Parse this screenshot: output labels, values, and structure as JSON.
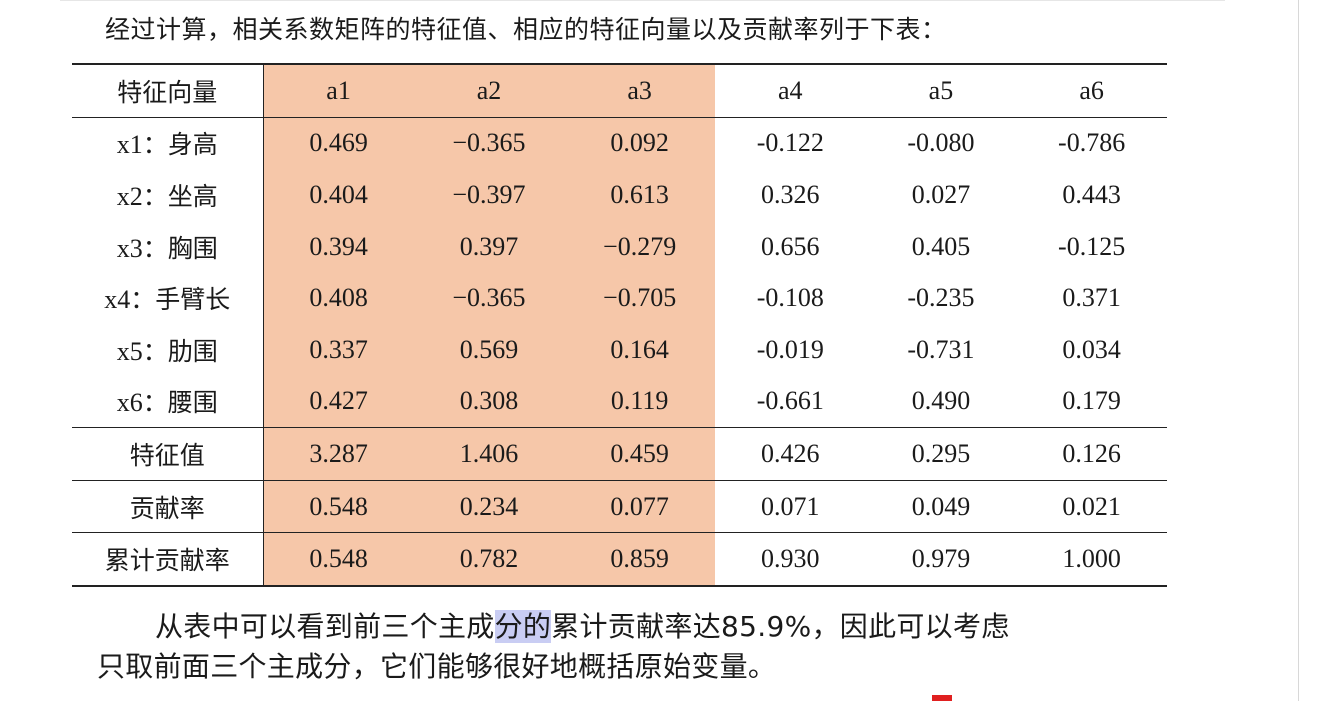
{
  "intro_text": "经过计算，相关系数矩阵的特征值、相应的特征向量以及贡献率列于下表：",
  "table": {
    "header": {
      "label": "特征向量",
      "columns": [
        "a1",
        "a2",
        "a3",
        "a4",
        "a5",
        "a6"
      ]
    },
    "vectors": [
      {
        "var": "x1",
        "sep": "：",
        "name": "身高",
        "values": [
          "0.469",
          "−0.365",
          "0.092",
          "-0.122",
          "-0.080",
          "-0.786"
        ]
      },
      {
        "var": "x2",
        "sep": "：",
        "name": "坐高",
        "values": [
          "0.404",
          "−0.397",
          "0.613",
          "0.326",
          "0.027",
          "0.443"
        ]
      },
      {
        "var": "x3",
        "sep": "：",
        "name": "胸围",
        "values": [
          "0.394",
          "0.397",
          "−0.279",
          "0.656",
          "0.405",
          "-0.125"
        ]
      },
      {
        "var": "x4",
        "sep": "：",
        "name": "手臂长",
        "values": [
          "0.408",
          "−0.365",
          "−0.705",
          "-0.108",
          "-0.235",
          "0.371"
        ]
      },
      {
        "var": "x5",
        "sep": "：",
        "name": "肋围",
        "values": [
          "0.337",
          "0.569",
          "0.164",
          "-0.019",
          "-0.731",
          "0.034"
        ]
      },
      {
        "var": "x6",
        "sep": "：",
        "name": "腰围",
        "values": [
          "0.427",
          "0.308",
          "0.119",
          "-0.661",
          "0.490",
          "0.179"
        ]
      }
    ],
    "summary": [
      {
        "label": "特征值",
        "values": [
          "3.287",
          "1.406",
          "0.459",
          "0.426",
          "0.295",
          "0.126"
        ]
      },
      {
        "label": "贡献率",
        "values": [
          "0.548",
          "0.234",
          "0.077",
          "0.071",
          "0.049",
          "0.021"
        ]
      },
      {
        "label": "累计贡献率",
        "values": [
          "0.548",
          "0.782",
          "0.859",
          "0.930",
          "0.979",
          "1.000"
        ]
      }
    ],
    "highlight_color": "#f6c7a9",
    "highlighted_columns": 3
  },
  "conclusion": {
    "line1_before": "从表中可以看到前三个主成",
    "line1_selected": "分的",
    "line1_after": "累计贡献率达85.9%，因此可以考虑",
    "line2": "只取前面三个主成分，它们能够很好地概括原始变量。",
    "selection_color": "#c9cdf3"
  }
}
